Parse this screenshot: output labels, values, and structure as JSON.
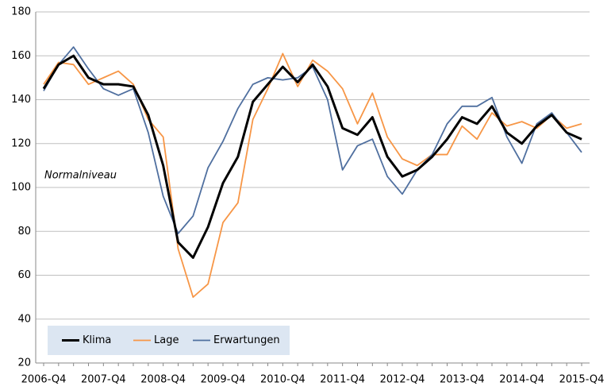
{
  "chart_data": {
    "type": "line",
    "annotation": "Normalniveau",
    "categories": [
      "2006-Q4",
      null,
      null,
      null,
      "2007-Q4",
      null,
      null,
      null,
      "2008-Q4",
      null,
      null,
      null,
      "2009-Q4",
      null,
      null,
      null,
      "2010-Q4",
      null,
      null,
      null,
      "2011-Q4",
      null,
      null,
      null,
      "2012-Q4",
      null,
      null,
      null,
      "2013-Q4",
      null,
      null,
      null,
      "2014-Q4",
      null,
      null,
      null,
      "2015-Q4"
    ],
    "series": [
      {
        "name": "Klima",
        "color": "#000000",
        "width": 3,
        "values": [
          145,
          156,
          160,
          150,
          147,
          147,
          146,
          133,
          110,
          75,
          68,
          82,
          102,
          114,
          139,
          147,
          155,
          148,
          156,
          146,
          127,
          124,
          132,
          114,
          105,
          108,
          114,
          122,
          132,
          129,
          137,
          125,
          120,
          128,
          133,
          125,
          122
        ]
      },
      {
        "name": "Lage",
        "color": "#f79646",
        "width": 1.8,
        "values": [
          147,
          157,
          156,
          147,
          150,
          153,
          147,
          131,
          123,
          72,
          50,
          56,
          84,
          93,
          131,
          145,
          161,
          146,
          158,
          153,
          145,
          129,
          143,
          123,
          113,
          110,
          115,
          115,
          128,
          122,
          134,
          128,
          130,
          127,
          133,
          127,
          129
        ]
      },
      {
        "name": "Erwartungen",
        "color": "#4f6f9f",
        "width": 1.8,
        "values": [
          144,
          156,
          164,
          154,
          145,
          142,
          145,
          125,
          96,
          79,
          87,
          109,
          121,
          136,
          147,
          150,
          149,
          150,
          155,
          140,
          108,
          119,
          122,
          105,
          97,
          108,
          115,
          129,
          137,
          137,
          141,
          123,
          111,
          129,
          134,
          125,
          116
        ]
      }
    ],
    "ylim": [
      20,
      180
    ],
    "yticks": [
      20,
      40,
      60,
      80,
      100,
      120,
      140,
      160,
      180
    ],
    "grid": true,
    "legend": "lower left"
  }
}
